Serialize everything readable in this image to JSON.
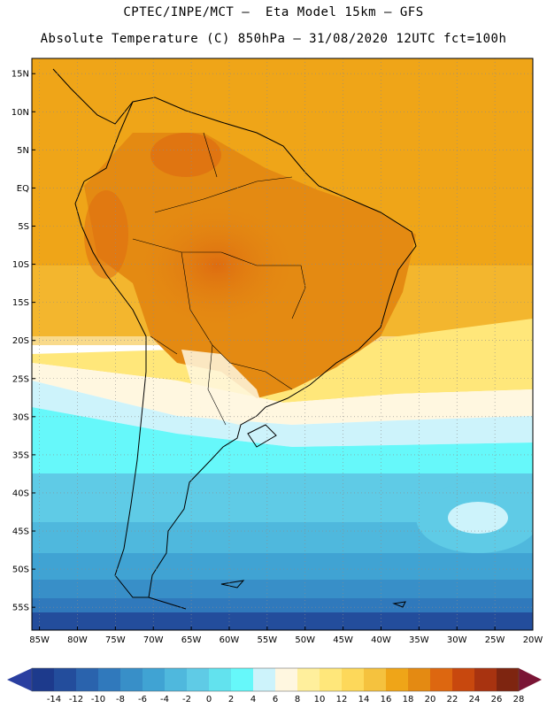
{
  "title": {
    "line1": "CPTEC/INPE/MCT –  Eta Model 15km – GFS",
    "line2": "Absolute Temperature (C) 850hPa – 31/08/2020 12UTC fct=100h"
  },
  "map": {
    "lat_labels": [
      "15N",
      "10N",
      "5N",
      "EQ",
      "5S",
      "10S",
      "15S",
      "20S",
      "25S",
      "30S",
      "35S",
      "40S",
      "45S",
      "50S",
      "55S"
    ],
    "lon_labels": [
      "85W",
      "80W",
      "75W",
      "70W",
      "65W",
      "60W",
      "55W",
      "50W",
      "45W",
      "40W",
      "35W",
      "30W",
      "25W",
      "20W"
    ],
    "lat_range": [
      -58,
      17
    ],
    "lon_range": [
      -86,
      -20
    ]
  },
  "colorbar": {
    "labels": [
      "-14",
      "-12",
      "-10",
      "-8",
      "-6",
      "-4",
      "-2",
      "0",
      "2",
      "4",
      "6",
      "8",
      "10",
      "12",
      "14",
      "16",
      "18",
      "20",
      "22",
      "24",
      "26",
      "28"
    ],
    "colors": [
      "#1d3a8c",
      "#234d9c",
      "#2a63ad",
      "#3079bc",
      "#388fc8",
      "#40a3d3",
      "#4fb8dd",
      "#5fcbe6",
      "#62e2ee",
      "#66f8fa",
      "#cdf3fb",
      "#fff7e0",
      "#ffef9c",
      "#ffe77a",
      "#fdd85a",
      "#f5c23e",
      "#efa518",
      "#e48a12",
      "#dd6710",
      "#c8480e",
      "#a83310",
      "#7e2510"
    ],
    "under_color": "#2a3fa0",
    "over_color": "#7a1535"
  }
}
